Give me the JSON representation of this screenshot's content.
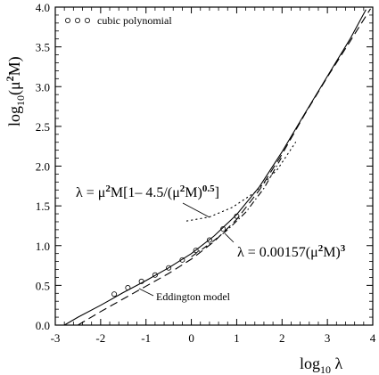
{
  "chart_data": {
    "type": "line",
    "xlabel": {
      "base": "log",
      "sub": "10",
      "symbol": " λ"
    },
    "ylabel": {
      "base": "log",
      "sub": "10",
      "paren": "(μ",
      "sup": "2",
      "tail": "M)"
    },
    "xlim": [
      -3,
      4
    ],
    "ylim": [
      0.0,
      4.0
    ],
    "x_ticks": [
      -3,
      -2,
      -1,
      0,
      1,
      2,
      3,
      4
    ],
    "x_tick_labels": [
      "-3",
      "-2",
      "-1",
      "0",
      "1",
      "2",
      "3",
      "4"
    ],
    "y_ticks": [
      0.0,
      0.5,
      1.0,
      1.5,
      2.0,
      2.5,
      3.0,
      3.5,
      4.0
    ],
    "y_tick_labels": [
      "0.0",
      "0.5",
      "1.0",
      "1.5",
      "2.0",
      "2.5",
      "3.0",
      "3.5",
      "4.0"
    ],
    "grid": false,
    "legend": {
      "position": "top-left",
      "label": "cubic polynomial"
    },
    "series": [
      {
        "name": "cubic polynomial",
        "style": "circles",
        "x": [
          -1.7,
          -1.4,
          -1.1,
          -0.8,
          -0.5,
          -0.2,
          0.1,
          0.4,
          0.7,
          1.0
        ],
        "y": [
          0.39,
          0.47,
          0.55,
          0.63,
          0.72,
          0.82,
          0.94,
          1.07,
          1.21,
          1.37
        ]
      },
      {
        "style": "solid",
        "x": [
          -2.8,
          -2.5,
          -2.0,
          -1.5,
          -1.0,
          -0.5,
          0.0,
          0.5,
          1.0,
          1.5,
          2.0,
          2.5,
          3.0,
          3.5,
          3.85
        ],
        "y": [
          0.0,
          0.1,
          0.25,
          0.41,
          0.56,
          0.72,
          0.9,
          1.12,
          1.39,
          1.74,
          2.18,
          2.66,
          3.13,
          3.6,
          3.97
        ]
      },
      {
        "style": "dashed",
        "x": [
          -2.5,
          -2.0,
          -1.5,
          -1.0,
          -0.5,
          0.0,
          0.5,
          1.0,
          1.5,
          2.0,
          2.5,
          3.0,
          3.5,
          3.95
        ],
        "y": [
          0.0,
          0.17,
          0.33,
          0.49,
          0.65,
          0.83,
          1.05,
          1.33,
          1.7,
          2.15,
          2.65,
          3.12,
          3.57,
          3.98
        ]
      },
      {
        "style": "dash-dot",
        "x": [
          0.0,
          0.4,
          0.8,
          1.2,
          1.6,
          2.0
        ],
        "y": [
          0.86,
          1.02,
          1.2,
          1.42,
          1.72,
          2.12
        ]
      },
      {
        "style": "dotted",
        "x": [
          -0.1,
          0.4,
          0.9,
          1.4,
          1.9,
          2.3
        ],
        "y": [
          1.31,
          1.36,
          1.48,
          1.67,
          1.96,
          2.3
        ]
      }
    ],
    "annotations": {
      "formula1": {
        "lhs": "λ = μ",
        "sup1": "2",
        "mid": "M[1– 4.5/(μ",
        "sup2": "2",
        "mid2": "M)",
        "sup3": "0.5",
        "end": "]"
      },
      "formula2": {
        "lhs": "λ = 0.00157(μ",
        "sup1": "2",
        "mid": "M)",
        "sup2": "3"
      },
      "eddington": "Eddington model"
    }
  }
}
